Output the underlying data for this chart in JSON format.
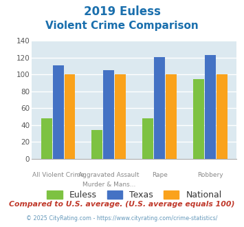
{
  "title_line1": "2019 Euless",
  "title_line2": "Violent Crime Comparison",
  "cat_labels_top": [
    "",
    "Aggravated Assault",
    "",
    ""
  ],
  "cat_labels_bot": [
    "All Violent Crime",
    "Murder & Mans...",
    "Rape",
    "Robbery"
  ],
  "series": {
    "Euless": [
      48,
      34,
      48,
      95
    ],
    "Texas": [
      111,
      105,
      121,
      123
    ],
    "National": [
      100,
      100,
      100,
      100
    ]
  },
  "colors": {
    "Euless": "#7dc242",
    "Texas": "#4472c4",
    "National": "#faa21b"
  },
  "ylim": [
    0,
    140
  ],
  "yticks": [
    0,
    20,
    40,
    60,
    80,
    100,
    120,
    140
  ],
  "title_color": "#1a6fad",
  "plot_bg": "#dce9f0",
  "grid_color": "#ffffff",
  "footer_text": "Compared to U.S. average. (U.S. average equals 100)",
  "footer_color": "#c0392b",
  "credit_text": "© 2025 CityRating.com - https://www.cityrating.com/crime-statistics/",
  "credit_color": "#6699bb",
  "bar_width": 0.23
}
